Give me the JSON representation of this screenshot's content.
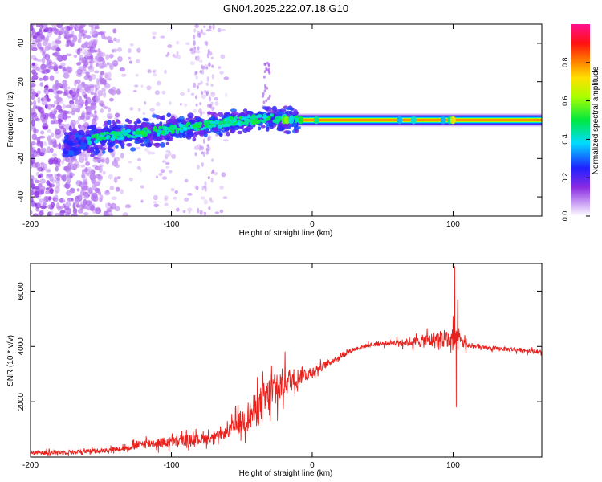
{
  "title": "GN04.2025.222.07.18.G10",
  "colors": {
    "snr_line": "#e8211d",
    "ridge": "#1a8f4a",
    "dot_purple": "#7a1be0"
  },
  "chart_data": [
    {
      "type": "heatmap",
      "xlabel": "Height of straight line (km)",
      "ylabel": "Frequency (Hz)",
      "xlim": [
        -200,
        163
      ],
      "ylim": [
        -50,
        50
      ],
      "x_ticks": [
        "-200",
        "-100",
        "0",
        "100"
      ],
      "x_tick_values": [
        -200,
        -100,
        0,
        100
      ],
      "y_ticks": [
        "-40",
        "-20",
        "0",
        "20",
        "40"
      ],
      "y_tick_values": [
        -40,
        -20,
        0,
        20,
        40
      ],
      "colorbar": {
        "label": "Normalized spectral amplitude",
        "range": [
          0,
          1
        ],
        "ticks": [
          "0.0",
          "0.2",
          "0.4",
          "0.6",
          "0.8"
        ],
        "tick_values": [
          0.0,
          0.2,
          0.4,
          0.6,
          0.8
        ],
        "colormap": "rainbow (white-violet-blue-cyan-green-yellow-red-magenta)"
      },
      "features": {
        "noise_region_x": [
          -200,
          -130
        ],
        "noise_frequency_span": [
          -50,
          50
        ],
        "ridge_start": {
          "x": -175,
          "freq": -12
        },
        "ridge_rise_end": {
          "x": -30,
          "freq": 1
        },
        "ridge_flat": {
          "x": [
            -10,
            163
          ],
          "freq": 0,
          "amplitude": 1.0
        },
        "faint_streak_x": [
          -84,
          -70
        ],
        "side_bursts_x": [
          -35,
          -30
        ]
      },
      "grid": false
    },
    {
      "type": "line",
      "xlabel": "Height of straight line (km)",
      "ylabel": "SNR (10 * v/v)",
      "xlim": [
        -200,
        163
      ],
      "ylim": [
        0,
        7000
      ],
      "x_ticks": [
        "-200",
        "-100",
        "0",
        "100"
      ],
      "x_tick_values": [
        -200,
        -100,
        0,
        100
      ],
      "y_ticks": [
        "2000",
        "4000",
        "6000"
      ],
      "y_tick_values": [
        2000,
        4000,
        6000
      ],
      "series": [
        {
          "x": [
            -200,
            -180,
            -160,
            -140,
            -130,
            -120,
            -100,
            -80,
            -70,
            -60,
            -50,
            -40,
            -30,
            -20,
            -10,
            0,
            10,
            20,
            25,
            30,
            40,
            50,
            60,
            70,
            80,
            90,
            95,
            100,
            105,
            110,
            120,
            140,
            163
          ],
          "y": [
            150,
            170,
            200,
            280,
            350,
            480,
            550,
            650,
            700,
            900,
            1300,
            1700,
            2200,
            2700,
            2900,
            3100,
            3350,
            3650,
            3800,
            3900,
            4050,
            4100,
            4150,
            4150,
            4200,
            4250,
            4300,
            4150,
            4200,
            4050,
            3950,
            3900,
            3800
          ],
          "noise_amplitude": [
            150,
            170,
            160,
            170,
            200,
            330,
            380,
            400,
            300,
            400,
            900,
            1300,
            1600,
            1100,
            650,
            400,
            250,
            200,
            180,
            150,
            150,
            160,
            200,
            300,
            500,
            650,
            800,
            1000,
            600,
            220,
            150,
            150,
            150
          ]
        }
      ],
      "peaks": [
        {
          "x": 101,
          "y": 6900
        },
        {
          "x": 103,
          "y": 5700
        },
        {
          "x": 102,
          "y": 1800
        }
      ],
      "grid": false
    }
  ]
}
